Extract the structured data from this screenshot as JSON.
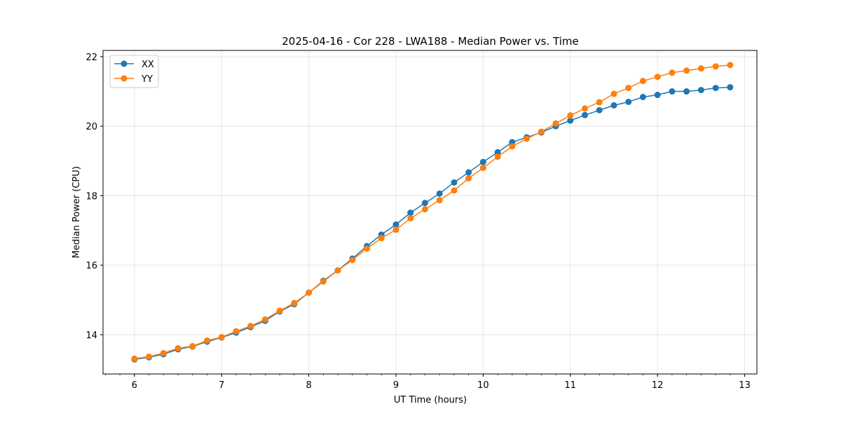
{
  "chart_data": {
    "type": "line",
    "title": "2025-04-16 - Cor 228 - LWA188 - Median Power vs. Time",
    "xlabel": "UT Time (hours)",
    "ylabel": "Median Power (CPU)",
    "xlim": [
      5.64,
      13.14
    ],
    "ylim": [
      12.87,
      22.18
    ],
    "xticks": [
      6,
      7,
      8,
      9,
      10,
      11,
      12,
      13
    ],
    "yticks": [
      14,
      16,
      18,
      20,
      22
    ],
    "xminor_step": 0.16667,
    "grid": true,
    "legend_position": "top-left",
    "x": [
      6.0,
      6.167,
      6.333,
      6.5,
      6.667,
      6.833,
      7.0,
      7.167,
      7.333,
      7.5,
      7.667,
      7.833,
      8.0,
      8.167,
      8.333,
      8.5,
      8.667,
      8.833,
      9.0,
      9.167,
      9.333,
      9.5,
      9.667,
      9.833,
      10.0,
      10.167,
      10.333,
      10.5,
      10.667,
      10.833,
      11.0,
      11.167,
      11.333,
      11.5,
      11.667,
      11.833,
      12.0,
      12.167,
      12.333,
      12.5,
      12.667,
      12.833
    ],
    "series": [
      {
        "name": "XX",
        "color": "#1f77b4",
        "values": [
          13.29,
          13.35,
          13.44,
          13.58,
          13.66,
          13.8,
          13.92,
          14.06,
          14.22,
          14.4,
          14.67,
          14.88,
          15.21,
          15.55,
          15.85,
          16.19,
          16.55,
          16.88,
          17.17,
          17.51,
          17.79,
          18.06,
          18.38,
          18.67,
          18.97,
          19.25,
          19.54,
          19.68,
          19.82,
          20.0,
          20.16,
          20.32,
          20.46,
          20.6,
          20.7,
          20.84,
          20.9,
          21.0,
          21.0,
          21.04,
          21.1,
          21.12
        ]
      },
      {
        "name": "YY",
        "color": "#ff7f0e",
        "values": [
          13.31,
          13.37,
          13.47,
          13.61,
          13.67,
          13.83,
          13.93,
          14.1,
          14.25,
          14.44,
          14.69,
          14.91,
          15.21,
          15.53,
          15.85,
          16.15,
          16.48,
          16.78,
          17.02,
          17.35,
          17.61,
          17.87,
          18.15,
          18.5,
          18.8,
          19.12,
          19.42,
          19.64,
          19.84,
          20.08,
          20.31,
          20.51,
          20.69,
          20.93,
          21.1,
          21.3,
          21.42,
          21.54,
          21.6,
          21.66,
          21.72,
          21.76
        ]
      }
    ]
  }
}
